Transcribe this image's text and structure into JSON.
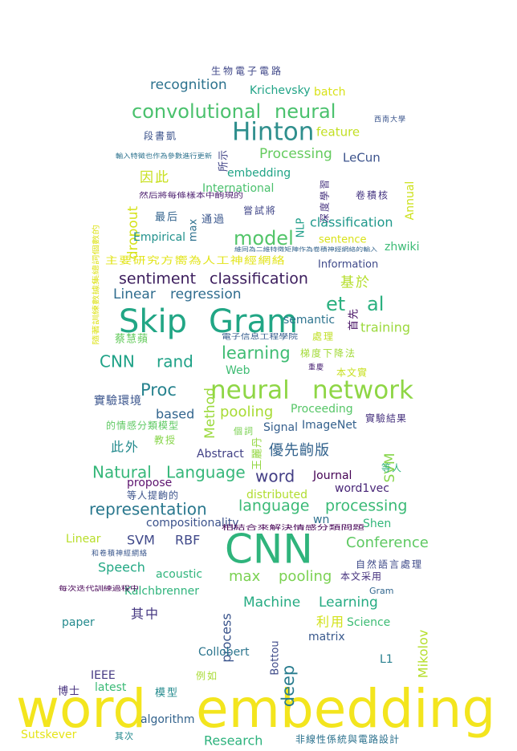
{
  "words": [
    {
      "text": "word",
      "color": "#f3e51e"
    },
    {
      "text": "embedding",
      "color": "#f3e51e"
    },
    {
      "text": "CNN",
      "color": "#2fb47c"
    },
    {
      "text": "Skip",
      "color": "#21a685"
    },
    {
      "text": "Gram",
      "color": "#21a685"
    },
    {
      "text": "neural",
      "color": "#8ed645"
    },
    {
      "text": "network",
      "color": "#8ed645"
    },
    {
      "text": "Hinton",
      "color": "#2f8f8d"
    },
    {
      "text": "convolutional",
      "color": "#4ac16d"
    },
    {
      "text": "neural",
      "color": "#4ac16d"
    },
    {
      "text": "model",
      "color": "#52c569"
    },
    {
      "text": "et",
      "color": "#2ab07f"
    },
    {
      "text": "al",
      "color": "#2ab07f"
    },
    {
      "text": "sentiment",
      "color": "#3b1c5c"
    },
    {
      "text": "classification",
      "color": "#3b1c5c"
    },
    {
      "text": "learning",
      "color": "#3fbc73"
    },
    {
      "text": "CNN",
      "color": "#1fa287"
    },
    {
      "text": "rand",
      "color": "#1fa287"
    },
    {
      "text": "Proc",
      "color": "#26828e"
    },
    {
      "text": "Natural",
      "color": "#35b779"
    },
    {
      "text": "Language",
      "color": "#35b779"
    },
    {
      "text": "representation",
      "color": "#2a788e"
    },
    {
      "text": "word",
      "color": "#433e85"
    },
    {
      "text": "language",
      "color": "#3aba76"
    },
    {
      "text": "processing",
      "color": "#3aba76"
    },
    {
      "text": "max",
      "color": "#7ad151"
    },
    {
      "text": "pooling",
      "color": "#7ad151"
    },
    {
      "text": "Conference",
      "color": "#5ec962"
    },
    {
      "text": "Machine",
      "color": "#25ab82"
    },
    {
      "text": "Learning",
      "color": "#25ab82"
    },
    {
      "text": "deep",
      "color": "#287c8e"
    },
    {
      "text": "pooling",
      "color": "#a8db34"
    },
    {
      "text": "Linear",
      "color": "#2f6c8e"
    },
    {
      "text": "regression",
      "color": "#2f6c8e"
    },
    {
      "text": "recognition",
      "color": "#2c728e"
    },
    {
      "text": "Processing",
      "color": "#65cb5e"
    },
    {
      "text": "classification",
      "color": "#1f988b"
    },
    {
      "text": "training",
      "color": "#9bd93c"
    },
    {
      "text": "based",
      "color": "#32658e"
    },
    {
      "text": "Speech",
      "color": "#22a884"
    },
    {
      "text": "SVM",
      "color": "#3f4889"
    },
    {
      "text": "RBF",
      "color": "#3f4889"
    },
    {
      "text": "feature",
      "color": "#c2df23"
    },
    {
      "text": "LeCun",
      "color": "#3b528b"
    },
    {
      "text": "dropout",
      "color": "#d5e21a"
    },
    {
      "text": "Method",
      "color": "#9bd93c"
    },
    {
      "text": "SVM",
      "color": "#86d549"
    },
    {
      "text": "Mikolov",
      "color": "#b5de2b"
    },
    {
      "text": "process",
      "color": "#3a548c"
    },
    {
      "text": "batch",
      "color": "#d8e219"
    },
    {
      "text": "Krichevsky",
      "color": "#20a386"
    },
    {
      "text": "semantic",
      "color": "#2c738e"
    },
    {
      "text": "Web",
      "color": "#3fbc73"
    },
    {
      "text": "Proceeding",
      "color": "#56c667"
    },
    {
      "text": "ImageNet",
      "color": "#34618d"
    },
    {
      "text": "Signal",
      "color": "#355f8d"
    },
    {
      "text": "Abstract",
      "color": "#424186"
    },
    {
      "text": "Journal",
      "color": "#440154"
    },
    {
      "text": "word1vec",
      "color": "#482677"
    },
    {
      "text": "wn",
      "color": "#2d708e"
    },
    {
      "text": "Shen",
      "color": "#32b67a"
    },
    {
      "text": "compositionality",
      "color": "#3b528b"
    },
    {
      "text": "propose",
      "color": "#5c126e"
    },
    {
      "text": "distributed",
      "color": "#b0dd2f"
    },
    {
      "text": "acoustic",
      "color": "#2fb47c"
    },
    {
      "text": "Kalchbrenner",
      "color": "#2fb47c"
    },
    {
      "text": "Gram",
      "color": "#31668e"
    },
    {
      "text": "Science",
      "color": "#3dbc74"
    },
    {
      "text": "matrix",
      "color": "#38588c"
    },
    {
      "text": "paper",
      "color": "#238a8d"
    },
    {
      "text": "Collobert",
      "color": "#2b758e"
    },
    {
      "text": "Bottou",
      "color": "#3e4a89"
    },
    {
      "text": "L1",
      "color": "#277f8e"
    },
    {
      "text": "IEEE",
      "color": "#443983"
    },
    {
      "text": "latest",
      "color": "#3aba76"
    },
    {
      "text": "algorithm",
      "color": "#33638d"
    },
    {
      "text": "Research",
      "color": "#2db27d"
    },
    {
      "text": "Sutskever",
      "color": "#e5e419"
    },
    {
      "text": "Linear",
      "color": "#b8de29"
    },
    {
      "text": "embedding",
      "color": "#20a486"
    },
    {
      "text": "International",
      "color": "#4ac16d"
    },
    {
      "text": "Empirical",
      "color": "#21918c"
    },
    {
      "text": "Annual",
      "color": "#cde11d"
    },
    {
      "text": "NLP",
      "color": "#1f9e89"
    },
    {
      "text": "max",
      "color": "#2d708e"
    },
    {
      "text": "sentence",
      "color": "#d8e219"
    },
    {
      "text": "zhwiki",
      "color": "#3bbb75"
    },
    {
      "text": "Information",
      "color": "#3e4989"
    },
    {
      "text": "生物電子電路",
      "color": "#3f4788"
    },
    {
      "text": "段書凱",
      "color": "#3b528b"
    },
    {
      "text": "因此",
      "color": "#c8e020"
    },
    {
      "text": "所示",
      "color": "#414487"
    },
    {
      "text": "深度學習",
      "color": "#46327e"
    },
    {
      "text": "卷積核",
      "color": "#453581"
    },
    {
      "text": "最后",
      "color": "#33638d"
    },
    {
      "text": "通過",
      "color": "#39568c"
    },
    {
      "text": "嘗試將",
      "color": "#404688"
    },
    {
      "text": "基於",
      "color": "#b5de2b"
    },
    {
      "text": "首先",
      "color": "#471164"
    },
    {
      "text": "蔡慧蘋",
      "color": "#65cb5e"
    },
    {
      "text": "處理",
      "color": "#c0df25"
    },
    {
      "text": "梯度下降法",
      "color": "#a2da37"
    },
    {
      "text": "重慶",
      "color": "#482173"
    },
    {
      "text": "本文實",
      "color": "#c8e020"
    },
    {
      "text": "實驗環境",
      "color": "#3a548c"
    },
    {
      "text": "實驗結果",
      "color": "#46327e"
    },
    {
      "text": "的情感分類模型",
      "color": "#5ec962"
    },
    {
      "text": "教授",
      "color": "#86d549"
    },
    {
      "text": "此外",
      "color": "#238a8d"
    },
    {
      "text": "個詞",
      "color": "#7ad151"
    },
    {
      "text": "王麗丹",
      "color": "#93d741"
    },
    {
      "text": "優先齣版",
      "color": "#33638d"
    },
    {
      "text": "等人",
      "color": "#2db27d"
    },
    {
      "text": "等人提齣的",
      "color": "#3b528b"
    },
    {
      "text": "和卷積神經網絡",
      "color": "#39568c"
    },
    {
      "text": "其中",
      "color": "#453781"
    },
    {
      "text": "利用",
      "color": "#d2e21b"
    },
    {
      "text": "例如",
      "color": "#a8db34"
    },
    {
      "text": "博士",
      "color": "#46307e"
    },
    {
      "text": "模型",
      "color": "#238a8d"
    },
    {
      "text": "其次",
      "color": "#23898e"
    },
    {
      "text": "自然語言處理",
      "color": "#3e4a89"
    },
    {
      "text": "本文采用",
      "color": "#46327e"
    },
    {
      "text": "每次迭代訓練過程中",
      "color": "#440154"
    },
    {
      "text": "非線性係統與電路設計",
      "color": "#2c728e"
    },
    {
      "text": "主要研究方嚮為人工神經網絡",
      "color": "#e2e418"
    },
    {
      "text": "西南大學",
      "color": "#3a548c"
    },
    {
      "text": "輸入特徵也作為參數進行更新",
      "color": "#2c728e"
    },
    {
      "text": "然后將每條樣本中齣現的",
      "color": "#481a6c"
    },
    {
      "text": "電子信息工程學院",
      "color": "#365c8d"
    },
    {
      "text": "相結合來解決情感分類問題",
      "color": "#440154"
    },
    {
      "text": "維同為二維特徵矩陣作為卷積神經網絡的輸入",
      "color": "#33638d"
    },
    {
      "text": "隨著訓練數據集總詞個數的",
      "color": "#dde318"
    }
  ]
}
